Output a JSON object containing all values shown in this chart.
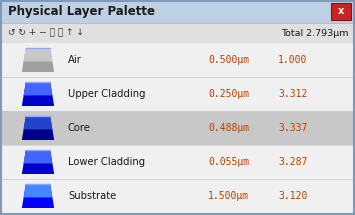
{
  "title": "Physical Layer Palette",
  "total_text": "Total 2.793μm",
  "layers": [
    {
      "name": "Air",
      "thickness": "0.500μm",
      "index": "1.000",
      "color_main": "#a0a0a0",
      "color_top": "#c8c8c8",
      "selected": false
    },
    {
      "name": "Upper Cladding",
      "thickness": "0.250μm",
      "index": "3.312",
      "color_main": "#0000cc",
      "color_top": "#4466ff",
      "selected": false
    },
    {
      "name": "Core",
      "thickness": "0.488μm",
      "index": "3.337",
      "color_main": "#000088",
      "color_top": "#2244cc",
      "selected": true
    },
    {
      "name": "Lower Cladding",
      "thickness": "0.055μm",
      "index": "3.287",
      "color_main": "#0000cc",
      "color_top": "#4466ff",
      "selected": false
    },
    {
      "name": "Substrate",
      "thickness": "1.500μm",
      "index": "3.120",
      "color_main": "#0000ff",
      "color_top": "#4488ff",
      "selected": false
    }
  ],
  "bg_outer": "#c0d4e8",
  "bg_title": "#bdd0e4",
  "bg_toolbar": "#e0e0e0",
  "bg_content": "#f0f0f0",
  "bg_selected": "#c8c8c8",
  "text_orange": "#b84000",
  "text_black": "#1a1a1a",
  "close_color": "#cc2222",
  "figsize": [
    3.55,
    2.15
  ],
  "dpi": 100
}
